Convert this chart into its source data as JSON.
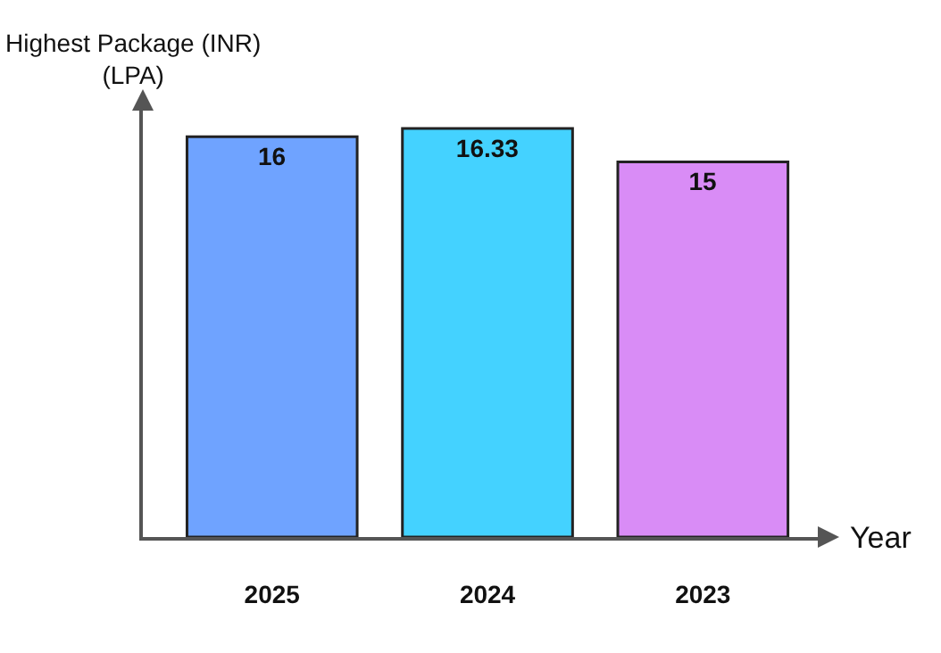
{
  "chart_data": {
    "type": "bar",
    "xlabel": "Year",
    "ylabel": "Highest Package (INR)\n(LPA)",
    "categories": [
      "2025",
      "2024",
      "2023"
    ],
    "values": [
      16,
      16.33,
      15
    ],
    "colors": [
      "#6fa3ff",
      "#44d2ff",
      "#d98cf6"
    ],
    "data_labels": true,
    "grid": false
  }
}
